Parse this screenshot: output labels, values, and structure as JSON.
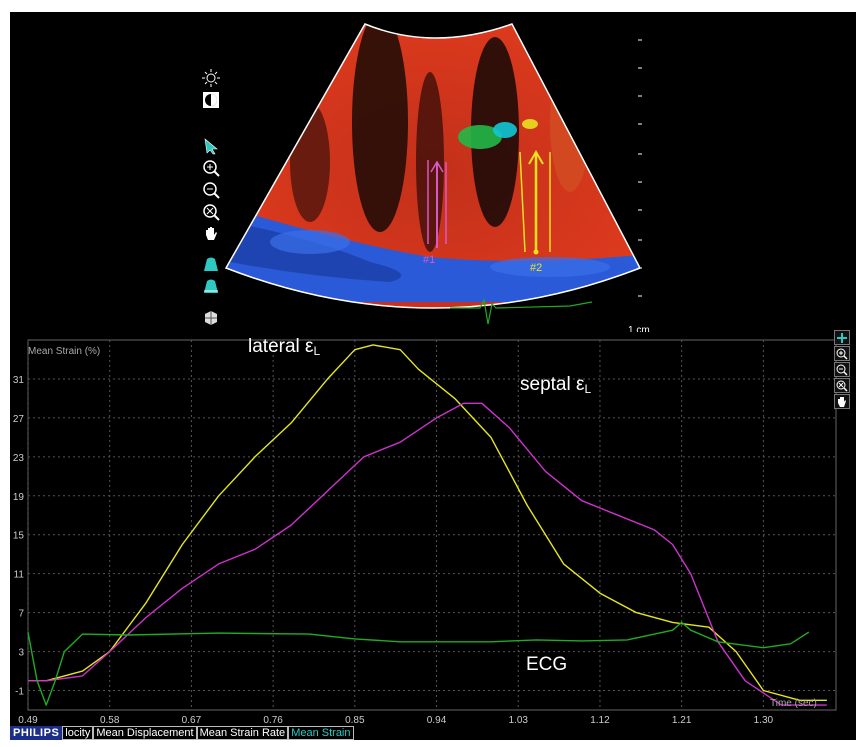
{
  "image_panel": {
    "scale_label": "1 cm",
    "segment_labels": [
      "#1",
      "#2"
    ],
    "tools": [
      "brightness-icon",
      "contrast-icon",
      "pointer-icon",
      "zoom-in-icon",
      "zoom-out-icon",
      "zoom-reset-icon",
      "pan-hand-icon",
      "chamber-icon-1",
      "chamber-icon-2",
      "heart-model-icon"
    ]
  },
  "chart_toolbar": [
    "add-icon",
    "zoom-in-icon",
    "zoom-out-icon",
    "zoom-reset-icon",
    "pan-hand-icon"
  ],
  "annotations": {
    "lateral": "lateral ε",
    "lateral_sub": "L",
    "septal": "septal ε",
    "septal_sub": "L",
    "ecg": "ECG"
  },
  "tabs": {
    "brand": "PHILIPS",
    "items": [
      {
        "label": "locity",
        "active": false
      },
      {
        "label": "Mean Displacement",
        "active": false
      },
      {
        "label": "Mean Strain Rate",
        "active": false
      },
      {
        "label": "Mean Strain",
        "active": true
      }
    ]
  },
  "colors": {
    "lateral": "#e6e61e",
    "septal": "#cc33cc",
    "ecg": "#22aa22",
    "active_tab": "#2ec9c2",
    "brand": "#1b2f8a"
  },
  "chart_data": {
    "type": "line",
    "ylabel": "Mean Strain (%)",
    "xlabel": "Time (sec)",
    "xlim": [
      0.49,
      1.38
    ],
    "ylim": [
      -3,
      35
    ],
    "x_ticks": [
      "0.49",
      "0.58",
      "0.67",
      "0.76",
      "0.85",
      "0.94",
      "1.03",
      "1.12",
      "1.21",
      "1.30"
    ],
    "y_ticks": [
      "31",
      "27",
      "23",
      "19",
      "15",
      "11",
      "7",
      "3",
      "-1"
    ],
    "grid": true,
    "series": [
      {
        "key": "lateral",
        "x": [
          0.49,
          0.51,
          0.55,
          0.58,
          0.62,
          0.66,
          0.7,
          0.74,
          0.78,
          0.82,
          0.85,
          0.87,
          0.9,
          0.92,
          0.96,
          1.0,
          1.04,
          1.08,
          1.12,
          1.16,
          1.2,
          1.24,
          1.27,
          1.3,
          1.34,
          1.37
        ],
        "y": [
          0,
          0,
          1,
          3,
          8,
          14,
          19,
          23,
          26.5,
          31,
          34,
          34.5,
          34,
          32,
          29,
          25,
          18,
          12,
          9,
          7,
          6,
          5.5,
          3,
          -1,
          -2,
          -2
        ]
      },
      {
        "key": "septal",
        "x": [
          0.49,
          0.51,
          0.55,
          0.58,
          0.62,
          0.66,
          0.7,
          0.74,
          0.78,
          0.82,
          0.86,
          0.9,
          0.94,
          0.97,
          0.99,
          1.02,
          1.06,
          1.1,
          1.14,
          1.18,
          1.2,
          1.22,
          1.25,
          1.28,
          1.32,
          1.37
        ],
        "y": [
          0,
          0,
          0.5,
          3,
          6.5,
          9.5,
          12,
          13.5,
          16,
          19.5,
          23,
          24.5,
          27,
          28.5,
          28.5,
          26,
          21.5,
          18.5,
          17,
          15.5,
          14,
          11,
          4,
          0,
          -2.5,
          -2.5
        ]
      },
      {
        "key": "ecg",
        "x": [
          0.49,
          0.5,
          0.51,
          0.52,
          0.53,
          0.55,
          0.6,
          0.7,
          0.8,
          0.85,
          0.9,
          0.95,
          1.0,
          1.05,
          1.1,
          1.15,
          1.2,
          1.21,
          1.22,
          1.25,
          1.3,
          1.33,
          1.35
        ],
        "y": [
          5,
          0,
          -2.5,
          0,
          3,
          4.8,
          4.7,
          4.9,
          4.8,
          4.3,
          4.0,
          4.0,
          4.0,
          4.2,
          4.1,
          4.2,
          5.2,
          6,
          5.2,
          4.0,
          3.4,
          3.8,
          5
        ]
      }
    ]
  }
}
